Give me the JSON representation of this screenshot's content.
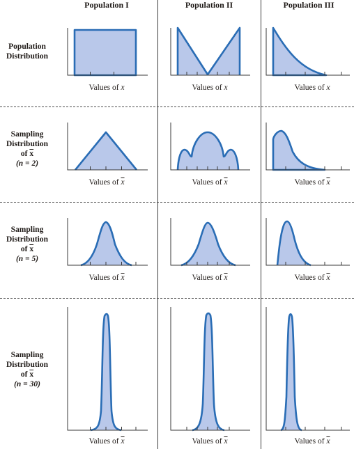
{
  "columns": [
    "Population I",
    "Population II",
    "Population III"
  ],
  "rows": [
    {
      "label_lines": [
        "Population",
        "Distribution"
      ],
      "n_text": ""
    },
    {
      "label_lines": [
        "Sampling",
        "Distribution",
        "of"
      ],
      "xbar": "x",
      "n_text": "(n = 2)"
    },
    {
      "label_lines": [
        "Sampling",
        "Distribution",
        "of"
      ],
      "xbar": "x",
      "n_text": "(n = 5)"
    },
    {
      "label_lines": [
        "Sampling",
        "Distribution",
        "of"
      ],
      "xbar": "x",
      "n_text": "(n = 30)"
    }
  ],
  "axis_labels": {
    "population": {
      "prefix": "Values of ",
      "var": "x"
    },
    "sampling": {
      "prefix": "Values of ",
      "var": "x"
    }
  },
  "colors": {
    "curve_stroke": "#2a6db5",
    "curve_fill": "#b9c8ea",
    "axis": "#3a3a3a"
  }
}
